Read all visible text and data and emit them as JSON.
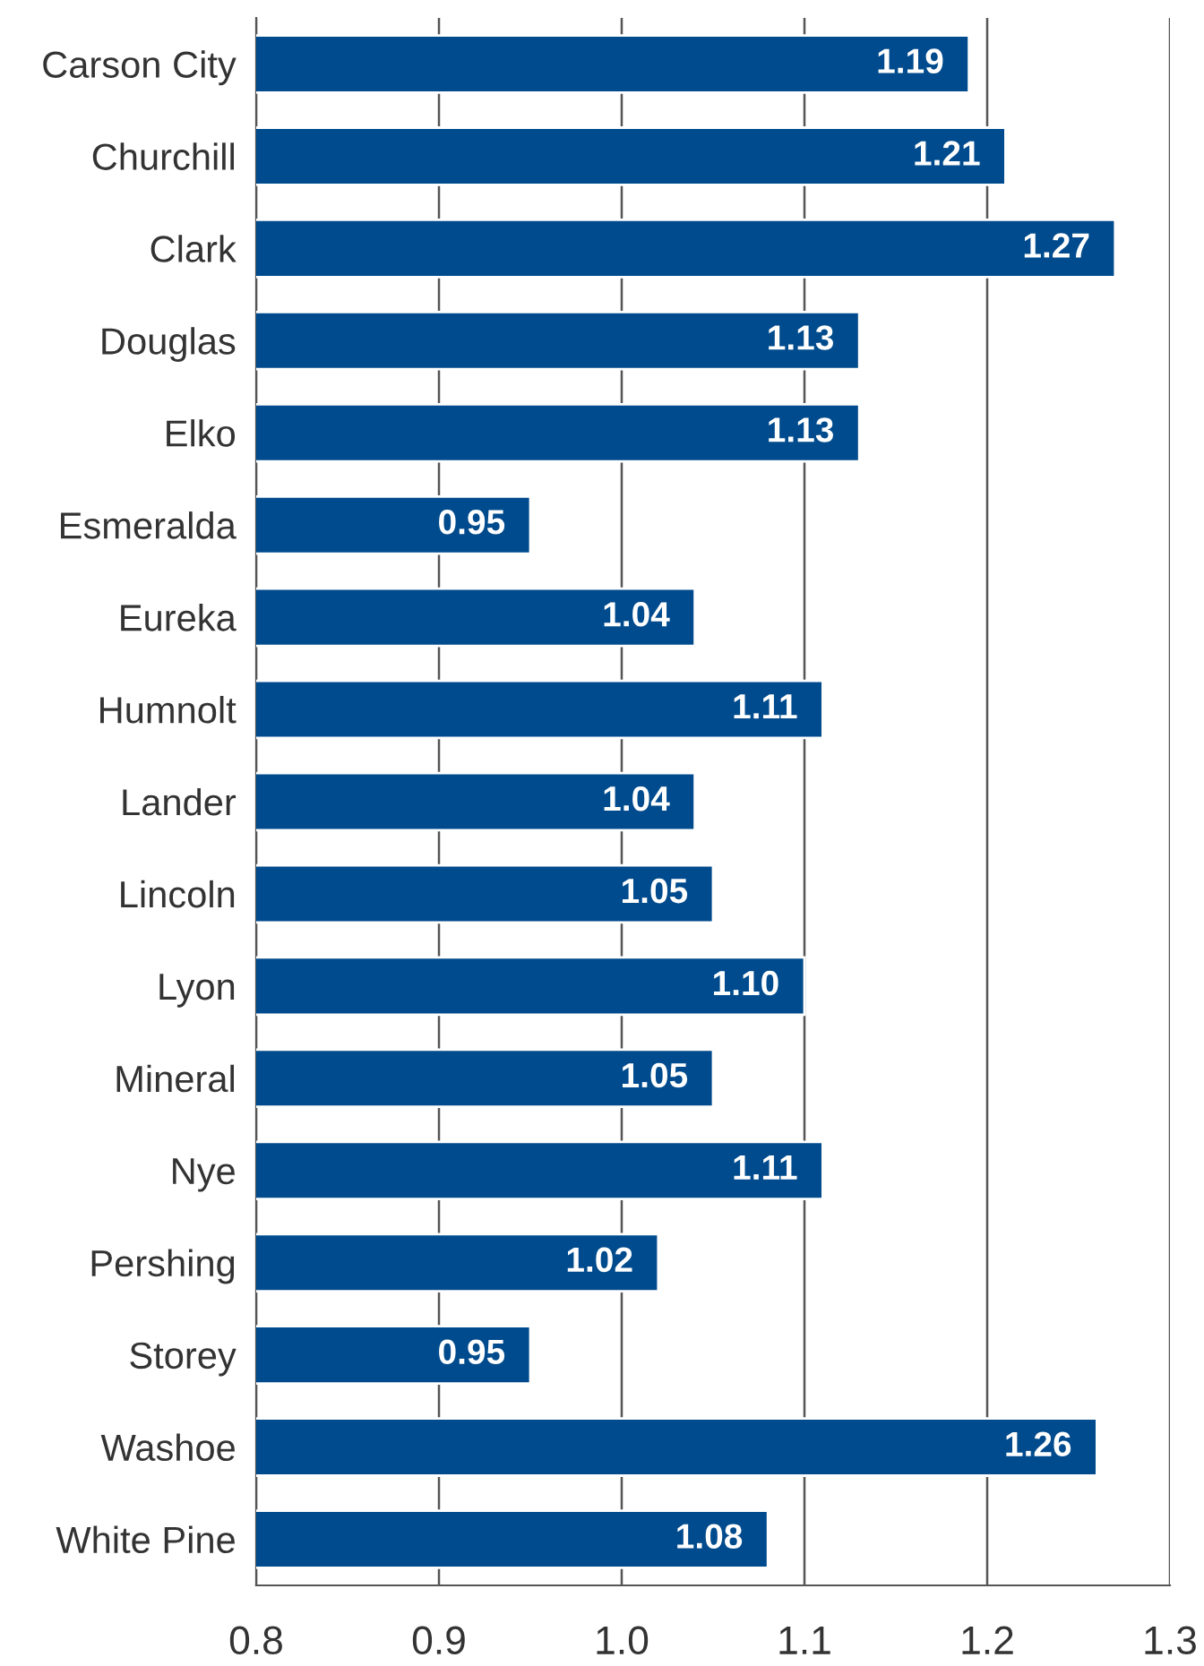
{
  "chart_data": {
    "type": "bar",
    "orientation": "horizontal",
    "categories": [
      "Carson City",
      "Churchill",
      "Clark",
      "Douglas",
      "Elko",
      "Esmeralda",
      "Eureka",
      "Humnolt",
      "Lander",
      "Lincoln",
      "Lyon",
      "Mineral",
      "Nye",
      "Pershing",
      "Storey",
      "Washoe",
      "White Pine"
    ],
    "values": [
      1.19,
      1.21,
      1.27,
      1.13,
      1.13,
      0.95,
      1.04,
      1.11,
      1.04,
      1.05,
      1.1,
      1.05,
      1.11,
      1.02,
      0.95,
      1.26,
      1.08
    ],
    "value_labels": [
      "1.19",
      "1.21",
      "1.27",
      "1.13",
      "1.13",
      "0.95",
      "1.04",
      "1.11",
      "1.04",
      "1.05",
      "1.10",
      "1.05",
      "1.11",
      "1.02",
      "0.95",
      "1.26",
      "1.08"
    ],
    "color": "#004b8d",
    "xlim": [
      0.8,
      1.3
    ],
    "xticks": [
      {
        "value": 0.8,
        "label": "0.8"
      },
      {
        "value": 0.9,
        "label": "0.9"
      },
      {
        "value": 1.0,
        "label": "1.0"
      },
      {
        "value": 1.1,
        "label": "1.1"
      },
      {
        "value": 1.2,
        "label": "1.2"
      },
      {
        "value": 1.3,
        "label": "1.3"
      }
    ],
    "grid": "x",
    "legend": false
  }
}
